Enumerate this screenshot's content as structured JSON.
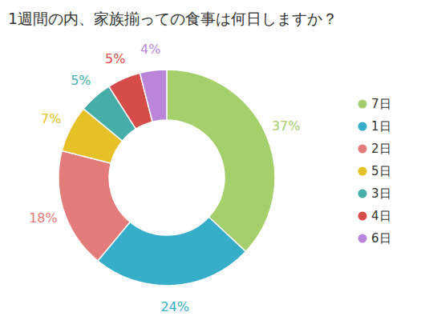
{
  "chart_data": {
    "type": "pie",
    "title": "1週間の内、家族揃っての食事は何日しますか？",
    "categories": [
      "7日",
      "1日",
      "2日",
      "5日",
      "3日",
      "4日",
      "6日"
    ],
    "values": [
      37,
      24,
      18,
      7,
      5,
      5,
      4
    ],
    "value_labels": [
      "37%",
      "24%",
      "18%",
      "7%",
      "5%",
      "5%",
      "4%"
    ],
    "colors": [
      "#a5cf6b",
      "#36aec9",
      "#e37b7b",
      "#e5c027",
      "#47ada8",
      "#d64c48",
      "#bb85d9"
    ],
    "data_labels": true,
    "legend": "right"
  }
}
